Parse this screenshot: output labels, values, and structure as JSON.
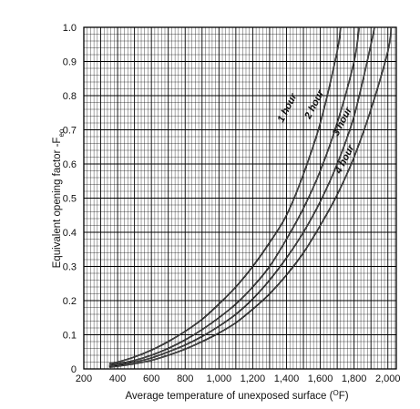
{
  "chart_data": {
    "type": "line",
    "xlabel": "Average temperature of unexposed surface (",
    "xlabel_superscript": "O",
    "xlabel_unit_suffix": "F)",
    "ylabel": "Equivalent opening factor -F",
    "ylabel_subscript": "eo",
    "xlim": [
      200,
      2050
    ],
    "ylim": [
      0,
      1.0
    ],
    "grid": true,
    "x_ticks": [
      200,
      400,
      600,
      800,
      1000,
      1200,
      1400,
      1600,
      1800,
      2000
    ],
    "x_tick_labels": [
      "200",
      "400",
      "600",
      "800",
      "1,000",
      "1,200",
      "1,400",
      "1,600",
      "1,800",
      "2,000"
    ],
    "y_ticks": [
      0,
      0.1,
      0.2,
      0.3,
      0.4,
      0.5,
      0.6,
      0.7,
      0.8,
      0.9,
      1.0
    ],
    "y_tick_labels": [
      "0",
      "0.1",
      "0.2",
      "0.3",
      "0.4",
      "0.5",
      "0.6",
      "0.7",
      "0.8",
      "0.9",
      "1.0"
    ],
    "series": [
      {
        "name": "1 hour",
        "x": [
          350,
          400,
          500,
          600,
          700,
          800,
          900,
          1000,
          1100,
          1200,
          1300,
          1400,
          1500,
          1600,
          1700,
          1720
        ],
        "y": [
          0.015,
          0.02,
          0.035,
          0.055,
          0.08,
          0.11,
          0.145,
          0.19,
          0.24,
          0.3,
          0.37,
          0.45,
          0.57,
          0.72,
          0.93,
          1.0
        ]
      },
      {
        "name": "2 hour",
        "x": [
          350,
          400,
          500,
          600,
          700,
          800,
          900,
          1000,
          1100,
          1200,
          1300,
          1400,
          1500,
          1600,
          1700,
          1800,
          1830
        ],
        "y": [
          0.01,
          0.015,
          0.025,
          0.04,
          0.06,
          0.085,
          0.115,
          0.15,
          0.19,
          0.24,
          0.3,
          0.38,
          0.47,
          0.58,
          0.72,
          0.9,
          1.0
        ]
      },
      {
        "name": "3 hour",
        "x": [
          350,
          400,
          500,
          600,
          700,
          800,
          900,
          1000,
          1100,
          1200,
          1300,
          1400,
          1500,
          1600,
          1700,
          1800,
          1900,
          1920
        ],
        "y": [
          0.008,
          0.012,
          0.02,
          0.032,
          0.05,
          0.07,
          0.095,
          0.125,
          0.16,
          0.205,
          0.26,
          0.325,
          0.4,
          0.49,
          0.6,
          0.74,
          0.95,
          1.0
        ]
      },
      {
        "name": "4 hour",
        "x": [
          350,
          400,
          500,
          600,
          700,
          800,
          900,
          1000,
          1100,
          1200,
          1300,
          1400,
          1500,
          1600,
          1700,
          1800,
          1900,
          2000,
          2020
        ],
        "y": [
          0.005,
          0.008,
          0.015,
          0.025,
          0.04,
          0.058,
          0.08,
          0.105,
          0.135,
          0.175,
          0.22,
          0.275,
          0.34,
          0.42,
          0.51,
          0.62,
          0.76,
          0.93,
          1.0
        ]
      }
    ]
  }
}
